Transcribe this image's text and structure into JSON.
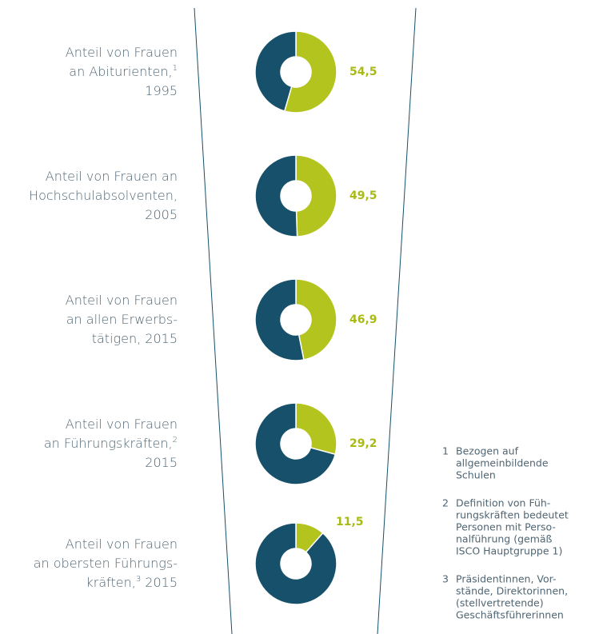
{
  "chart_data": [
    {
      "type": "pie",
      "label_lines": [
        [
          "Anteil von Frauen"
        ],
        [
          "an Abiturienten,",
          "1"
        ],
        [
          "1995"
        ]
      ],
      "values": [
        54.5,
        45.5
      ],
      "value_labels": [
        "54,5",
        null
      ],
      "colors": [
        "#b3c41e",
        "#17506a"
      ]
    },
    {
      "type": "pie",
      "label_lines": [
        [
          "Anteil von Frauen an"
        ],
        [
          "Hochschulabsolventen,"
        ],
        [
          "2005"
        ]
      ],
      "values": [
        49.5,
        50.5
      ],
      "value_labels": [
        "49,5",
        null
      ],
      "colors": [
        "#b3c41e",
        "#17506a"
      ]
    },
    {
      "type": "pie",
      "label_lines": [
        [
          "Anteil von Frauen"
        ],
        [
          "an allen Erwerbs-"
        ],
        [
          "tätigen, 2015"
        ]
      ],
      "values": [
        46.9,
        53.1
      ],
      "value_labels": [
        "46,9",
        null
      ],
      "colors": [
        "#b3c41e",
        "#17506a"
      ]
    },
    {
      "type": "pie",
      "label_lines": [
        [
          "Anteil von Frauen"
        ],
        [
          "an Führungskräften,",
          "2"
        ],
        [
          "2015"
        ]
      ],
      "values": [
        29.2,
        70.8
      ],
      "value_labels": [
        "29,2",
        null
      ],
      "colors": [
        "#b3c41e",
        "#17506a"
      ]
    },
    {
      "type": "pie",
      "label_lines": [
        [
          "Anteil von Frauen"
        ],
        [
          "an obersten Führungs-"
        ],
        [
          "kräften,",
          "3",
          " 2015"
        ]
      ],
      "values": [
        11.5,
        88.5
      ],
      "value_labels": [
        "11,5",
        null
      ],
      "colors": [
        "#b3c41e",
        "#17506a"
      ]
    }
  ],
  "footnotes": [
    {
      "number": "1",
      "lines": [
        "Bezogen auf",
        "allgemeinbildende",
        "Schulen"
      ]
    },
    {
      "number": "2",
      "lines": [
        "Definition von Füh-",
        "rungskräften bedeutet",
        "Personen mit Perso-",
        "nalführung (gemäß",
        "ISCO Hauptgruppe 1)"
      ]
    },
    {
      "number": "3",
      "lines": [
        "Präsidentinnen, Vor-",
        "stände, Direktorinnen,",
        "(stellvertretende)",
        "Geschäftsführerinnen"
      ]
    }
  ]
}
